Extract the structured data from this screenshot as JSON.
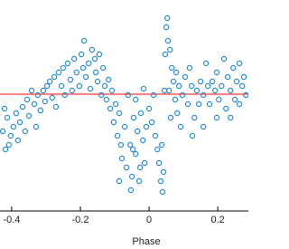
{
  "chart_data": {
    "type": "scatter",
    "xlabel": "Phase",
    "xlim": [
      -0.434,
      0.289
    ],
    "ylim": [
      0,
      233
    ],
    "xticks": [
      -0.4,
      -0.2,
      0,
      0.2
    ],
    "hline": 129,
    "hline_color": "#ff0000",
    "series": [
      {
        "color": "#2a8cc8",
        "x": [
          -0.421,
          -0.413,
          -0.426,
          -0.408,
          -0.403,
          -0.418,
          -0.395,
          -0.387,
          -0.382,
          -0.376,
          -0.368,
          -0.361,
          -0.355,
          -0.35,
          -0.342,
          -0.334,
          -0.329,
          -0.324,
          -0.316,
          -0.308,
          -0.303,
          -0.297,
          -0.289,
          -0.282,
          -0.276,
          -0.271,
          -0.263,
          -0.255,
          -0.25,
          -0.245,
          -0.237,
          -0.229,
          -0.224,
          -0.218,
          -0.211,
          -0.203,
          -0.197,
          -0.189,
          -0.192,
          -0.184,
          -0.176,
          -0.171,
          -0.166,
          -0.158,
          -0.155,
          -0.15,
          -0.145,
          -0.139,
          -0.134,
          -0.129,
          -0.124,
          -0.118,
          -0.113,
          -0.108,
          -0.103,
          -0.097,
          -0.092,
          -0.087,
          -0.082,
          -0.079,
          -0.071,
          -0.066,
          -0.061,
          -0.055,
          -0.05,
          -0.045,
          -0.039,
          -0.039,
          -0.034,
          -0.029,
          -0.024,
          -0.018,
          -0.013,
          -0.053,
          -0.087,
          -0.047,
          -0.026,
          -0.008,
          -0.016,
          0,
          0.008,
          0.013,
          0.018,
          0.024,
          0.029,
          0.034,
          0.039,
          0.045,
          0.05,
          0.053,
          0.055,
          0.061,
          0.066,
          0.071,
          0.076,
          0.082,
          0.087,
          0.092,
          0.042,
          0.037,
          0.058,
          0.047,
          0.063,
          0.079,
          0.097,
          0.105,
          0.113,
          0.118,
          0.124,
          0.132,
          0.139,
          0.145,
          0.15,
          0.158,
          0.166,
          0.171,
          0.176,
          0.184,
          0.192,
          0.197,
          0.203,
          0.211,
          0.218,
          0.224,
          0.229,
          0.237,
          0.245,
          0.25,
          0.255,
          0.263,
          0.271,
          0.276,
          0.282,
          0.263,
          0.237,
          0.197,
          0.158,
          0.126
        ],
        "values": [
          113,
          103,
          88,
          73,
          83,
          68,
          93,
          108,
          78,
          98,
          115,
          88,
          123,
          105,
          133,
          118,
          93,
          128,
          111,
          133,
          121,
          138,
          143,
          125,
          148,
          115,
          153,
          138,
          158,
          128,
          163,
          145,
          133,
          168,
          153,
          138,
          173,
          188,
          158,
          148,
          163,
          135,
          178,
          168,
          153,
          143,
          173,
          128,
          158,
          138,
          123,
          145,
          113,
          133,
          98,
          118,
          83,
          108,
          73,
          58,
          93,
          48,
          128,
          73,
          38,
          103,
          123,
          63,
          88,
          33,
          108,
          78,
          53,
          23,
          33,
          68,
          48,
          93,
          135,
          113,
          98,
          128,
          83,
          68,
          53,
          33,
          21,
          133,
          203,
          213,
          188,
          178,
          158,
          143,
          123,
          108,
          138,
          93,
          43,
          73,
          133,
          173,
          103,
          153,
          128,
          148,
          118,
          158,
          138,
          103,
          133,
          118,
          143,
          128,
          163,
          138,
          118,
          143,
          133,
          153,
          123,
          138,
          168,
          113,
          148,
          133,
          158,
          123,
          143,
          163,
          138,
          148,
          128,
          118,
          103,
          103,
          93,
          83
        ]
      }
    ]
  }
}
